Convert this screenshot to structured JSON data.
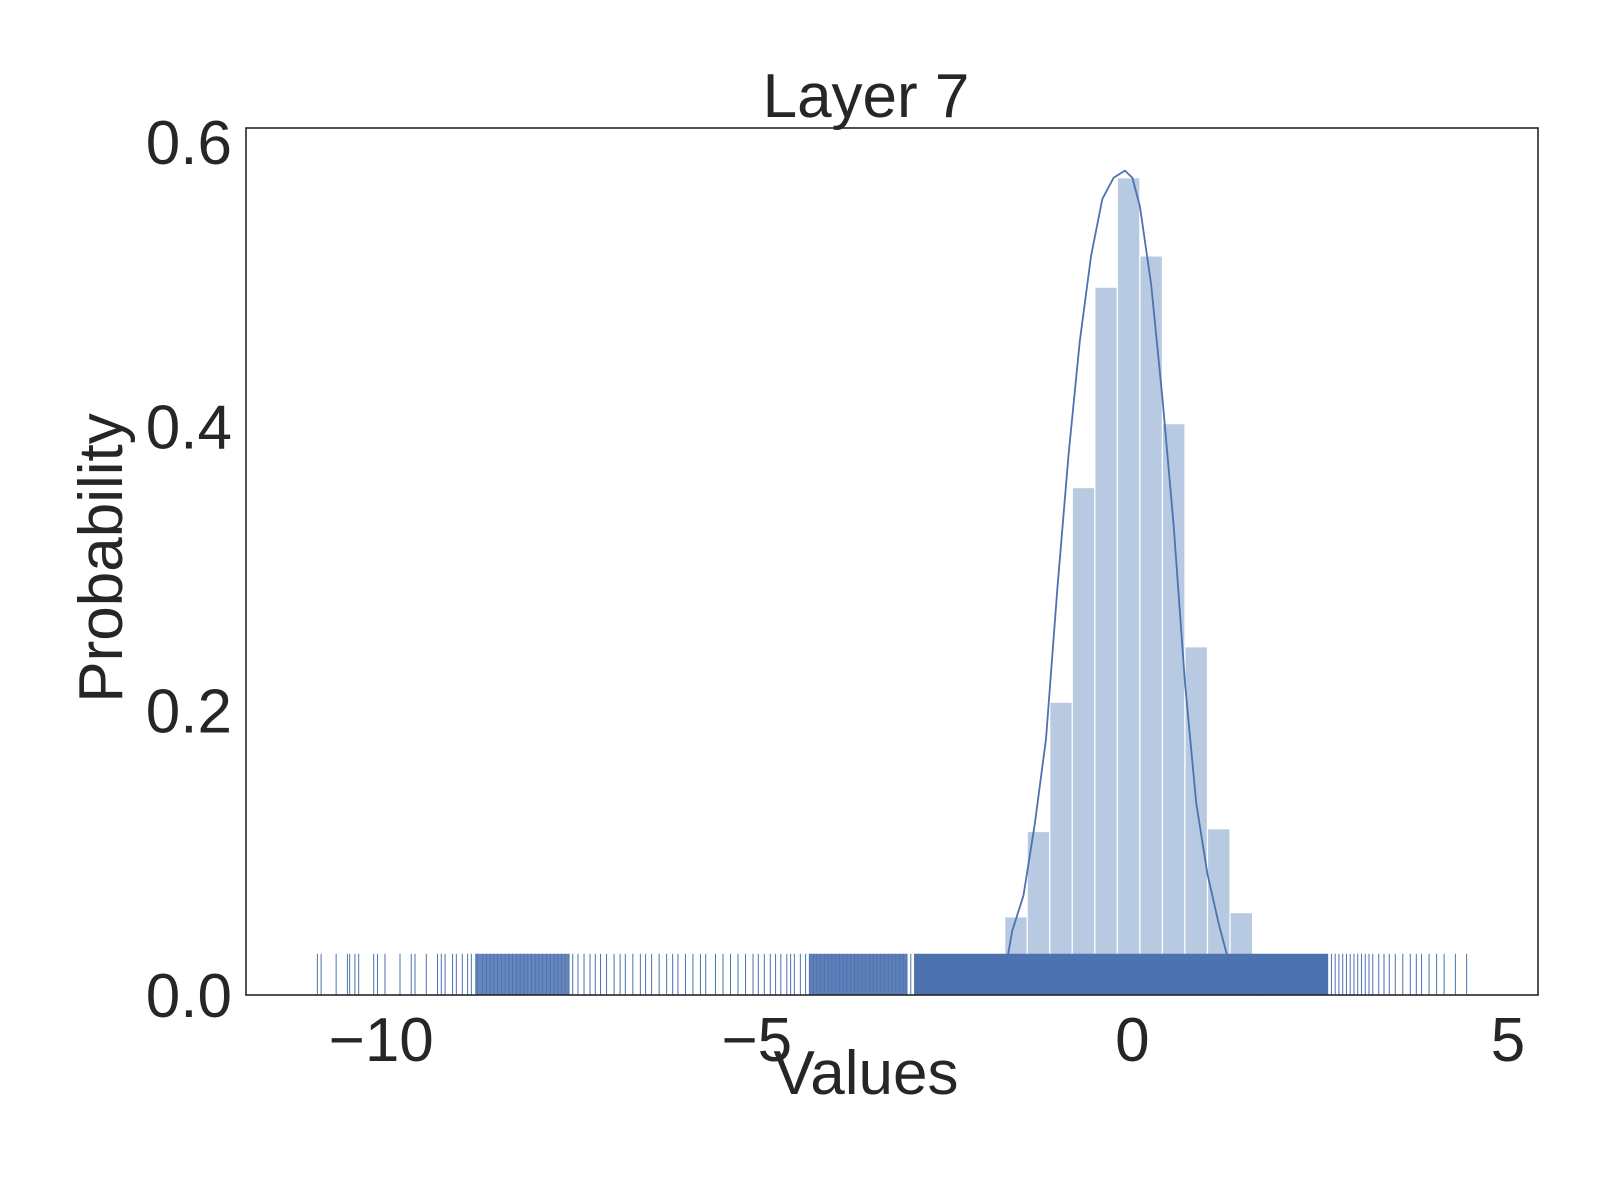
{
  "chart_data": {
    "type": "bar",
    "title": "Layer 7",
    "xlabel": "Values",
    "ylabel": "Probability",
    "xlim": [
      -11.8,
      5.4
    ],
    "ylim": [
      0,
      0.61
    ],
    "xticks": [
      -10,
      -5,
      0,
      5
    ],
    "xtick_labels": [
      "−10",
      "−5",
      "0",
      "5"
    ],
    "yticks": [
      0.0,
      0.2,
      0.4,
      0.6
    ],
    "ytick_labels": [
      "0.0",
      "0.2",
      "0.4",
      "0.6"
    ],
    "grid": false,
    "colors": {
      "bar": "#b8c9e2",
      "bar_edge": "#ffffff",
      "line": "#4c72b0",
      "rug": "#4c72b0",
      "axes": "#262626"
    },
    "series": [
      {
        "type": "histogram",
        "bin_edges": [
          -1.7,
          -1.4,
          -1.1,
          -0.8,
          -0.5,
          -0.2,
          0.1,
          0.4,
          0.7,
          1.0,
          1.3,
          1.6
        ],
        "values": [
          0.055,
          0.115,
          0.206,
          0.357,
          0.498,
          0.575,
          0.52,
          0.402,
          0.245,
          0.117,
          0.058
        ]
      },
      {
        "type": "kde",
        "x": [
          -1.75,
          -1.6,
          -1.45,
          -1.3,
          -1.15,
          -1.0,
          -0.85,
          -0.7,
          -0.55,
          -0.4,
          -0.25,
          -0.1,
          0.0,
          0.1,
          0.25,
          0.4,
          0.55,
          0.7,
          0.85,
          1.0,
          1.15,
          1.3,
          1.45,
          1.6,
          1.7
        ],
        "y": [
          0.0,
          0.045,
          0.07,
          0.12,
          0.18,
          0.285,
          0.38,
          0.46,
          0.52,
          0.56,
          0.575,
          0.58,
          0.575,
          0.555,
          0.5,
          0.42,
          0.33,
          0.22,
          0.135,
          0.085,
          0.05,
          0.02,
          0.005,
          0.001,
          0.0
        ]
      }
    ],
    "rug": {
      "height": 0.029,
      "values": [
        -10.85,
        -10.8,
        -10.6,
        -10.45,
        -10.42,
        -10.35,
        -10.3,
        -10.1,
        -10.05,
        -9.95,
        -9.75,
        -9.6,
        -9.55,
        -9.4,
        -9.25,
        -9.2,
        -9.15,
        -9.05,
        -9.0,
        -8.92,
        -8.85,
        -8.8,
        -8.72,
        -8.65,
        -8.6,
        -8.55,
        -8.5,
        -8.45,
        -8.4,
        -8.35,
        -8.3,
        -8.25,
        -8.2,
        -8.15,
        -8.1,
        -8.05,
        -8.0,
        -7.95,
        -7.9,
        -7.85,
        -7.8,
        -7.75,
        -7.7,
        -7.65,
        -7.6,
        -7.55,
        -7.5,
        -7.45,
        -7.38,
        -7.3,
        -7.22,
        -7.15,
        -7.08,
        -7.0,
        -6.9,
        -6.82,
        -6.75,
        -6.65,
        -6.55,
        -6.48,
        -6.4,
        -6.3,
        -6.2,
        -6.12,
        -6.05,
        -5.95,
        -5.85,
        -5.75,
        -5.68,
        -5.55,
        -5.45,
        -5.35,
        -5.25,
        -5.15,
        -5.05,
        -4.98,
        -4.9,
        -4.82,
        -4.75,
        -4.68,
        -4.6,
        -4.55,
        -4.5,
        -4.42,
        -4.35,
        -4.3,
        -4.25,
        -4.2,
        -4.15,
        -4.1,
        -4.05,
        -4.0,
        -3.95,
        -3.9,
        -3.85,
        -3.8,
        -3.75,
        -3.7,
        -3.65,
        -3.6,
        -3.55,
        -3.5,
        -3.45,
        -3.4,
        -3.35,
        -3.3,
        -3.25,
        -3.2,
        -3.15,
        -3.1,
        -3.05,
        -3.0,
        -2.95,
        -2.9,
        -2.85,
        -2.8,
        -2.75,
        -2.7,
        -2.65,
        -2.6,
        -2.55,
        -2.5,
        -2.45,
        -2.4,
        -2.35,
        -2.3,
        -2.25,
        -2.2,
        -2.15,
        -2.1,
        -2.05,
        -2.0,
        -1.95,
        -1.9,
        -1.85,
        -1.8,
        -1.75,
        -1.7,
        -1.65,
        -1.6,
        -1.55,
        -1.5,
        -1.45,
        -1.4,
        -1.35,
        -1.3,
        -1.25,
        -1.2,
        -1.15,
        -1.1,
        -1.05,
        -1.0,
        -0.95,
        -0.9,
        -0.85,
        -0.8,
        -0.75,
        -0.7,
        -0.65,
        -0.6,
        -0.55,
        -0.5,
        -0.45,
        -0.4,
        -0.35,
        -0.3,
        -0.25,
        -0.2,
        -0.15,
        -0.1,
        -0.05,
        0.0,
        0.05,
        0.1,
        0.15,
        0.2,
        0.25,
        0.3,
        0.35,
        0.4,
        0.45,
        0.5,
        0.55,
        0.6,
        0.65,
        0.7,
        0.75,
        0.8,
        0.85,
        0.9,
        0.95,
        1.0,
        1.05,
        1.1,
        1.15,
        1.2,
        1.25,
        1.3,
        1.35,
        1.4,
        1.45,
        1.5,
        1.55,
        1.6,
        1.65,
        1.7,
        1.75,
        1.8,
        1.85,
        1.9,
        1.95,
        2.0,
        2.05,
        2.1,
        2.15,
        2.2,
        2.25,
        2.3,
        2.35,
        2.4,
        2.45,
        2.5,
        2.55,
        2.6,
        2.65,
        2.7,
        2.75,
        2.8,
        2.85,
        2.9,
        2.95,
        3.0,
        3.05,
        3.1,
        3.15,
        3.2,
        3.28,
        3.35,
        3.42,
        3.5,
        3.6,
        3.7,
        3.78,
        3.85,
        3.95,
        4.05,
        4.15,
        4.3,
        4.45
      ]
    }
  }
}
